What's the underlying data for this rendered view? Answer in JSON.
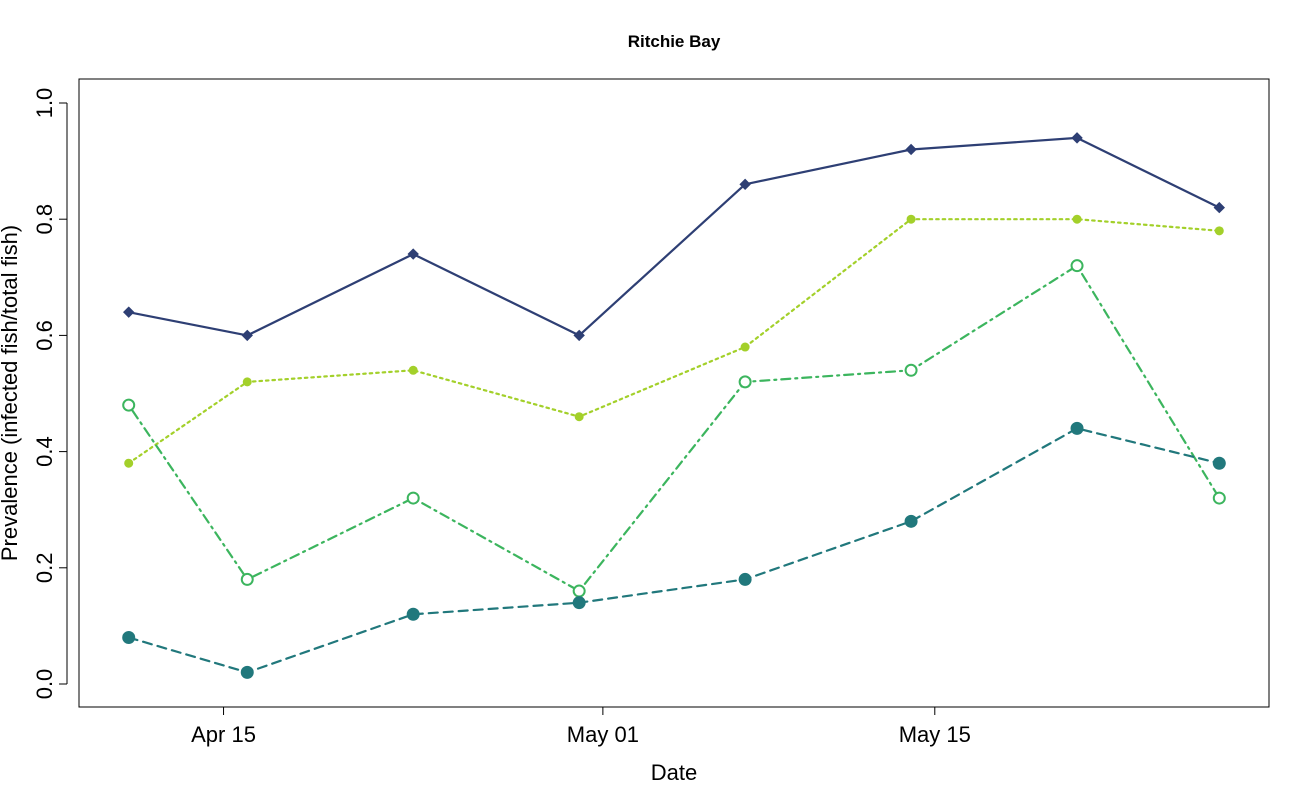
{
  "chart_data": {
    "type": "line",
    "title": "Ritchie Bay",
    "xlabel": "Date",
    "ylabel": "Prevalence (infected fish/total fish)",
    "x": [
      "2023-04-11",
      "2023-04-16",
      "2023-04-23",
      "2023-04-30",
      "2023-05-07",
      "2023-05-14",
      "2023-05-21",
      "2023-05-27"
    ],
    "x_ticks": [
      {
        "date": "2023-04-15",
        "label": "Apr 15"
      },
      {
        "date": "2023-05-01",
        "label": "May 01"
      },
      {
        "date": "2023-05-15",
        "label": "May 15"
      }
    ],
    "xlim": [
      "2023-04-10",
      "2023-05-28"
    ],
    "ylim": [
      0.0,
      1.0
    ],
    "y_ticks": [
      "0.0",
      "0.2",
      "0.4",
      "0.6",
      "0.8",
      "1.0"
    ],
    "grid": false,
    "series": [
      {
        "values": [
          0.64,
          0.6,
          0.74,
          0.6,
          0.86,
          0.92,
          0.94,
          0.82
        ],
        "color": "#2e3f74",
        "line_style": "solid",
        "marker": "diamond-filled"
      },
      {
        "values": [
          0.38,
          0.52,
          0.54,
          0.46,
          0.58,
          0.8,
          0.8,
          0.78
        ],
        "color": "#a3d02a",
        "line_style": "dotted",
        "marker": "circle-filled-small"
      },
      {
        "values": [
          0.48,
          0.18,
          0.32,
          0.16,
          0.52,
          0.54,
          0.72,
          0.32
        ],
        "color": "#3cb55e",
        "line_style": "dash-dot",
        "marker": "circle-open"
      },
      {
        "values": [
          0.08,
          0.02,
          0.12,
          0.14,
          0.18,
          0.28,
          0.44,
          0.38
        ],
        "color": "#21787c",
        "line_style": "dashed",
        "marker": "circle-filled-large"
      }
    ]
  }
}
